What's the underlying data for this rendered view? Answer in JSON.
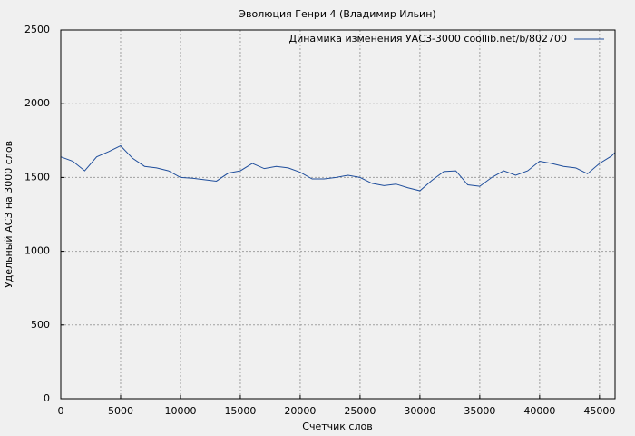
{
  "chart_data": {
    "type": "line",
    "title": "Эволюция Генри 4 (Владимир Ильин)",
    "xlabel": "Счетчик слов",
    "ylabel": "Удельный АСЗ на 3000 слов",
    "x": [
      0,
      1000,
      2000,
      3000,
      4000,
      5000,
      6000,
      7000,
      8000,
      9000,
      10000,
      11000,
      12000,
      13000,
      14000,
      15000,
      16000,
      17000,
      18000,
      19000,
      20000,
      21000,
      22000,
      23000,
      24000,
      25000,
      26000,
      27000,
      28000,
      29000,
      30000,
      31000,
      32000,
      33000,
      34000,
      35000,
      36000,
      37000,
      38000,
      39000,
      40000,
      41000,
      42000,
      43000,
      44000,
      45000,
      46000,
      46300
    ],
    "series": [
      {
        "name": "Динамика изменения УАСЗ-3000 coollib.net/b/802700",
        "color": "#1f4e9c",
        "values": [
          1640,
          1610,
          1545,
          1640,
          1675,
          1715,
          1630,
          1575,
          1565,
          1545,
          1500,
          1495,
          1485,
          1475,
          1530,
          1545,
          1595,
          1560,
          1575,
          1565,
          1535,
          1490,
          1490,
          1500,
          1515,
          1500,
          1460,
          1445,
          1455,
          1430,
          1410,
          1480,
          1540,
          1545,
          1450,
          1440,
          1500,
          1545,
          1515,
          1545,
          1610,
          1595,
          1575,
          1565,
          1525,
          1595,
          1645,
          1670
        ]
      }
    ],
    "xlim": [
      0,
      46300
    ],
    "ylim": [
      0,
      2500
    ],
    "xticks": [
      0,
      5000,
      10000,
      15000,
      20000,
      25000,
      30000,
      35000,
      40000,
      45000
    ],
    "yticks": [
      0,
      500,
      1000,
      1500,
      2000,
      2500
    ],
    "grid": true,
    "legend": "upper-right"
  }
}
